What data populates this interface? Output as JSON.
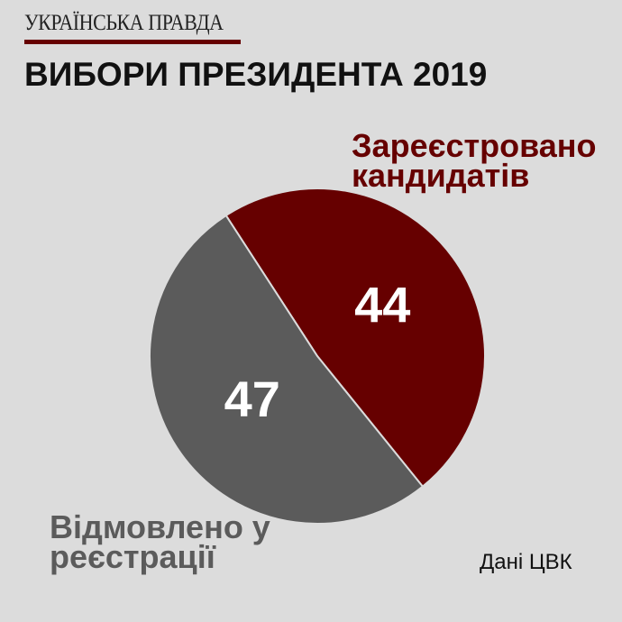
{
  "publisher": "УКРАЇНСЬКА ПРАВДА",
  "title": "ВИБОРИ ПРЕЗИДЕНТА 2019",
  "source": "Дані ЦВК",
  "chart_data": {
    "type": "pie",
    "categories": [
      "Зареєстровано кандидатів",
      "Відмовлено у реєстрації"
    ],
    "values": [
      44,
      47
    ],
    "colors": [
      "#660000",
      "#5b5b5b"
    ]
  }
}
